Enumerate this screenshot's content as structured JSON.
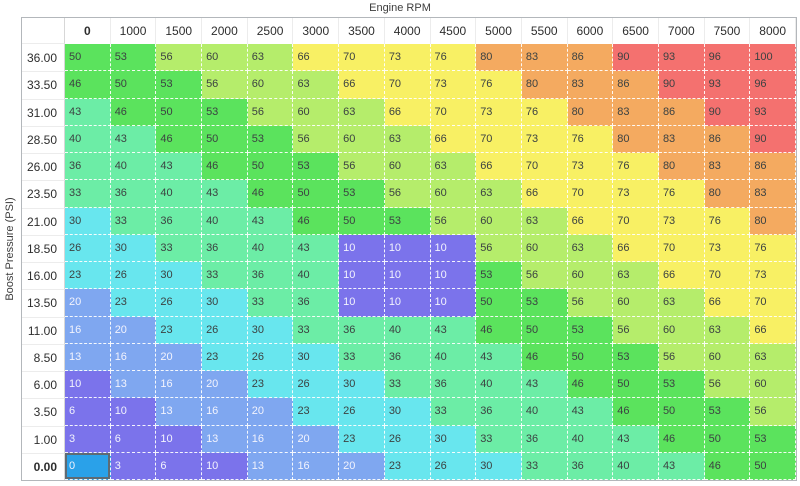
{
  "chart_data": {
    "type": "heatmap",
    "title": "Engine RPM",
    "xlabel": "Engine RPM",
    "ylabel": "Boost Pressure (PSI)",
    "columns": [
      "0",
      "1000",
      "1500",
      "2000",
      "2500",
      "3000",
      "3500",
      "4000",
      "4500",
      "5000",
      "5500",
      "6000",
      "6500",
      "7000",
      "7500",
      "8000"
    ],
    "rows": [
      "36.00",
      "33.50",
      "31.00",
      "28.50",
      "26.00",
      "23.50",
      "21.00",
      "18.50",
      "16.00",
      "13.50",
      "11.00",
      "8.50",
      "6.00",
      "3.50",
      "1.00",
      "0.00"
    ],
    "values": [
      [
        50,
        53,
        56,
        60,
        63,
        66,
        70,
        73,
        76,
        80,
        83,
        86,
        90,
        93,
        96,
        100
      ],
      [
        46,
        50,
        53,
        56,
        60,
        63,
        66,
        70,
        73,
        76,
        80,
        83,
        86,
        90,
        93,
        96
      ],
      [
        43,
        46,
        50,
        53,
        56,
        60,
        63,
        66,
        70,
        73,
        76,
        80,
        83,
        86,
        90,
        93
      ],
      [
        40,
        43,
        46,
        50,
        53,
        56,
        60,
        63,
        66,
        70,
        73,
        76,
        80,
        83,
        86,
        90
      ],
      [
        36,
        40,
        43,
        46,
        50,
        53,
        56,
        60,
        63,
        66,
        70,
        73,
        76,
        80,
        83,
        86
      ],
      [
        33,
        36,
        40,
        43,
        46,
        50,
        53,
        56,
        60,
        63,
        66,
        70,
        73,
        76,
        80,
        83
      ],
      [
        30,
        33,
        36,
        40,
        43,
        46,
        50,
        53,
        56,
        60,
        63,
        66,
        70,
        73,
        76,
        80
      ],
      [
        26,
        30,
        33,
        36,
        40,
        43,
        10,
        10,
        10,
        56,
        60,
        63,
        66,
        70,
        73,
        76
      ],
      [
        23,
        26,
        30,
        33,
        36,
        40,
        10,
        10,
        10,
        53,
        56,
        60,
        63,
        66,
        70,
        73
      ],
      [
        20,
        23,
        26,
        30,
        33,
        36,
        10,
        10,
        10,
        50,
        53,
        56,
        60,
        63,
        66,
        70
      ],
      [
        16,
        20,
        23,
        26,
        30,
        33,
        36,
        40,
        43,
        46,
        50,
        53,
        56,
        60,
        63,
        66
      ],
      [
        13,
        16,
        20,
        23,
        26,
        30,
        33,
        36,
        40,
        43,
        46,
        50,
        53,
        56,
        60,
        63
      ],
      [
        10,
        13,
        16,
        20,
        23,
        26,
        30,
        33,
        36,
        40,
        43,
        46,
        50,
        53,
        56,
        60
      ],
      [
        6,
        10,
        13,
        16,
        20,
        23,
        26,
        30,
        33,
        36,
        40,
        43,
        46,
        50,
        53,
        56
      ],
      [
        3,
        6,
        10,
        13,
        16,
        20,
        23,
        26,
        30,
        33,
        36,
        40,
        43,
        46,
        50,
        53
      ],
      [
        0,
        3,
        6,
        10,
        13,
        16,
        20,
        23,
        26,
        30,
        33,
        36,
        40,
        43,
        46,
        50
      ]
    ]
  },
  "ui": {
    "selected_cell": {
      "row_label": "0.00",
      "col_label": "0",
      "row_index": 15,
      "col_index": 0,
      "value": 0
    },
    "colors": {
      "selected_bg": "#2aa1e9",
      "selected_border": "#5e6b74",
      "grid_outer_border": "#b3b7bb",
      "header_separator": "#ececec",
      "header_text": "#2e2e2e",
      "cell_text_dark": "#3c4242",
      "cell_text_light": "#f2f3fd",
      "title_text": "#3c3c3c"
    },
    "color_bands": [
      {
        "max": 10,
        "bg": "#7b73eb",
        "text": "light"
      },
      {
        "max": 20,
        "bg": "#7fa7f0",
        "text": "light"
      },
      {
        "max": 30,
        "bg": "#68e6ee",
        "text": "dark"
      },
      {
        "max": 43,
        "bg": "#6ceda6",
        "text": "dark"
      },
      {
        "max": 53,
        "bg": "#5be35d",
        "text": "dark"
      },
      {
        "max": 63,
        "bg": "#b5ed6b",
        "text": "dark"
      },
      {
        "max": 76,
        "bg": "#f8f064",
        "text": "dark"
      },
      {
        "max": 86,
        "bg": "#f4aa60",
        "text": "dark"
      },
      {
        "max": 100,
        "bg": "#f4716f",
        "text": "dark"
      }
    ]
  }
}
